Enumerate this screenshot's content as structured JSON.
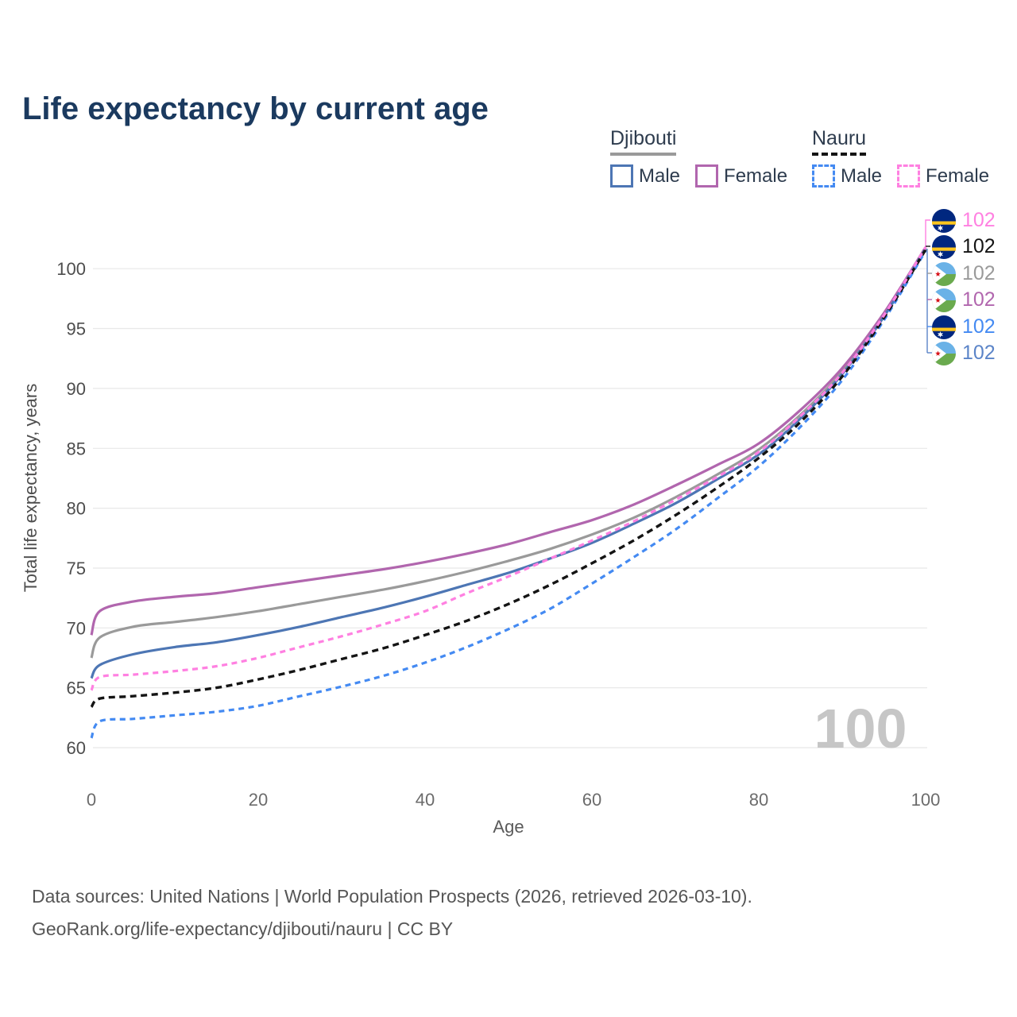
{
  "page": {
    "title": "Life expectancy by current age"
  },
  "legend": {
    "groups": [
      {
        "label": "Djibouti",
        "underline_style": "solid",
        "underline_color": "#9a9a9a",
        "items": [
          {
            "label": "Male",
            "color": "#4d76b4",
            "dash": "solid"
          },
          {
            "label": "Female",
            "color": "#b166ae",
            "dash": "solid"
          }
        ]
      },
      {
        "label": "Nauru",
        "underline_style": "dashed",
        "underline_color": "#141414",
        "items": [
          {
            "label": "Male",
            "color": "#448af2",
            "dash": "dashed"
          },
          {
            "label": "Female",
            "color": "#ff80e1",
            "dash": "dashed"
          }
        ]
      }
    ]
  },
  "footer": {
    "line1": "Data sources: United Nations | World Population Prospects (2026, retrieved 2026-03-10).",
    "line2": "GeoRank.org/life-expectancy/djibouti/nauru | CC BY"
  },
  "chart_data": {
    "type": "line",
    "title": "Life expectancy by current age",
    "xlabel": "Age",
    "ylabel": "Total life expectancy, years",
    "xlim": [
      0,
      100
    ],
    "ylim": [
      60,
      102
    ],
    "xticks": [
      0,
      20,
      40,
      60,
      80,
      100
    ],
    "yticks": [
      60,
      65,
      70,
      75,
      80,
      85,
      90,
      95,
      100
    ],
    "grid": "horizontal",
    "legend_position": "top-right",
    "watermark": "100",
    "x": [
      0,
      1,
      5,
      10,
      15,
      20,
      25,
      30,
      35,
      40,
      45,
      50,
      55,
      60,
      65,
      70,
      75,
      80,
      85,
      90,
      95,
      100
    ],
    "series": [
      {
        "id": "dj-male",
        "name": "Djibouti Male",
        "country": "Djibouti",
        "sex": "Male",
        "color": "#4d76b4",
        "dash": "solid",
        "values": [
          65.8,
          66.9,
          67.8,
          68.4,
          68.8,
          69.4,
          70.1,
          70.9,
          71.7,
          72.6,
          73.6,
          74.6,
          75.8,
          77.1,
          78.7,
          80.4,
          82.4,
          84.5,
          87.5,
          91.2,
          96.0,
          101.7
        ]
      },
      {
        "id": "dj-female",
        "name": "Djibouti Female",
        "country": "Djibouti",
        "sex": "Female",
        "color": "#b166ae",
        "dash": "solid",
        "values": [
          69.4,
          71.4,
          72.2,
          72.6,
          72.9,
          73.4,
          73.9,
          74.4,
          74.9,
          75.5,
          76.2,
          77.0,
          78.0,
          79.0,
          80.3,
          81.9,
          83.6,
          85.4,
          88.2,
          91.7,
          96.3,
          101.8
        ]
      },
      {
        "id": "dj-both",
        "name": "Djibouti Both sexes",
        "country": "Djibouti",
        "sex": "Both sexes",
        "color": "#9a9a9a",
        "dash": "solid",
        "values": [
          67.5,
          69.2,
          70.1,
          70.5,
          70.9,
          71.4,
          72.0,
          72.6,
          73.2,
          73.9,
          74.7,
          75.6,
          76.6,
          77.8,
          79.2,
          80.9,
          82.8,
          84.9,
          87.8,
          91.4,
          96.1,
          101.7
        ]
      },
      {
        "id": "nr-male",
        "name": "Nauru Male",
        "country": "Nauru",
        "sex": "Male",
        "color": "#448af2",
        "dash": "dashed",
        "values": [
          60.8,
          62.2,
          62.4,
          62.7,
          63.0,
          63.5,
          64.3,
          65.1,
          66.0,
          67.1,
          68.4,
          69.9,
          71.6,
          73.7,
          75.9,
          78.2,
          80.8,
          83.5,
          86.8,
          90.7,
          95.7,
          101.5
        ]
      },
      {
        "id": "nr-female",
        "name": "Nauru Female",
        "country": "Nauru",
        "sex": "Female",
        "color": "#ff80e1",
        "dash": "dashed",
        "values": [
          64.8,
          65.9,
          66.1,
          66.4,
          66.8,
          67.5,
          68.4,
          69.3,
          70.3,
          71.4,
          72.9,
          74.3,
          75.8,
          77.3,
          78.9,
          80.7,
          82.6,
          84.7,
          87.7,
          91.3,
          96.1,
          101.8
        ]
      },
      {
        "id": "nr-both",
        "name": "Nauru Both sexes",
        "country": "Nauru",
        "sex": "Both sexes",
        "color": "#141414",
        "dash": "dashed",
        "values": [
          63.4,
          64.1,
          64.3,
          64.6,
          65.0,
          65.7,
          66.5,
          67.4,
          68.3,
          69.4,
          70.6,
          72.0,
          73.6,
          75.4,
          77.3,
          79.4,
          81.7,
          84.2,
          87.2,
          91.0,
          95.9,
          101.6
        ]
      }
    ],
    "end_labels": [
      {
        "series_id": "nr-female",
        "flag": "nauru-flag-icon",
        "value": "102",
        "color": "#ff80e1"
      },
      {
        "series_id": "nr-both",
        "flag": "nauru-flag-icon",
        "value": "102",
        "color": "#141414"
      },
      {
        "series_id": "dj-both",
        "flag": "djibouti-flag-icon",
        "value": "102",
        "color": "#9a9a9a"
      },
      {
        "series_id": "dj-female",
        "flag": "djibouti-flag-icon",
        "value": "102",
        "color": "#b166ae"
      },
      {
        "series_id": "nr-male",
        "flag": "nauru-flag-icon",
        "value": "102",
        "color": "#448af2"
      },
      {
        "series_id": "dj-male",
        "flag": "djibouti-flag-icon",
        "value": "102",
        "color": "#5b84c8"
      }
    ]
  }
}
